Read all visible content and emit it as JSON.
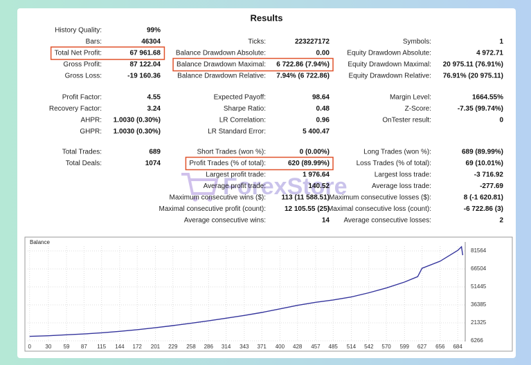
{
  "report": {
    "title": "Results",
    "watermark": "ForexStore",
    "sections": [
      {
        "rows": [
          [
            {
              "label": "History Quality:",
              "value": "99%"
            },
            null,
            null
          ],
          [
            {
              "label": "Bars:",
              "value": "46304"
            },
            {
              "label": "Ticks:",
              "value": "223227172"
            },
            {
              "label": "Symbols:",
              "value": "1"
            }
          ],
          [
            {
              "label": "Total Net Profit:",
              "value": "67 961.68",
              "highlight": true
            },
            {
              "label": "Balance Drawdown Absolute:",
              "value": "0.00"
            },
            {
              "label": "Equity Drawdown Absolute:",
              "value": "4 972.71"
            }
          ],
          [
            {
              "label": "Gross Profit:",
              "value": "87 122.04"
            },
            {
              "label": "Balance Drawdown Maximal:",
              "value": "6 722.86 (7.94%)",
              "highlight": true
            },
            {
              "label": "Equity Drawdown Maximal:",
              "value": "20 975.11 (76.91%)"
            }
          ],
          [
            {
              "label": "Gross Loss:",
              "value": "-19 160.36"
            },
            {
              "label": "Balance Drawdown Relative:",
              "value": "7.94% (6 722.86)"
            },
            {
              "label": "Equity Drawdown Relative:",
              "value": "76.91% (20 975.11)"
            }
          ]
        ]
      },
      {
        "rows": [
          [
            {
              "label": "Profit Factor:",
              "value": "4.55"
            },
            {
              "label": "Expected Payoff:",
              "value": "98.64"
            },
            {
              "label": "Margin Level:",
              "value": "1664.55%"
            }
          ],
          [
            {
              "label": "Recovery Factor:",
              "value": "3.24"
            },
            {
              "label": "Sharpe Ratio:",
              "value": "0.48"
            },
            {
              "label": "Z-Score:",
              "value": "-7.35 (99.74%)"
            }
          ],
          [
            {
              "label": "AHPR:",
              "value": "1.0030 (0.30%)"
            },
            {
              "label": "LR Correlation:",
              "value": "0.96"
            },
            {
              "label": "OnTester result:",
              "value": "0"
            }
          ],
          [
            {
              "label": "GHPR:",
              "value": "1.0030 (0.30%)"
            },
            {
              "label": "LR Standard Error:",
              "value": "5 400.47"
            },
            null
          ]
        ]
      },
      {
        "rows": [
          [
            {
              "label": "Total Trades:",
              "value": "689"
            },
            {
              "label": "Short Trades (won %):",
              "value": "0 (0.00%)"
            },
            {
              "label": "Long Trades (won %):",
              "value": "689 (89.99%)"
            }
          ],
          [
            {
              "label": "Total Deals:",
              "value": "1074"
            },
            {
              "label": "Profit Trades (% of total):",
              "value": "620 (89.99%)",
              "highlight": true
            },
            {
              "label": "Loss Trades (% of total):",
              "value": "69 (10.01%)"
            }
          ],
          [
            null,
            {
              "label": "Largest profit trade:",
              "value": "1 976.64"
            },
            {
              "label": "Largest loss trade:",
              "value": "-3 716.92"
            }
          ],
          [
            null,
            {
              "label": "Average profit trade:",
              "value": "140.52"
            },
            {
              "label": "Average loss trade:",
              "value": "-277.69"
            }
          ],
          [
            null,
            {
              "label": "Maximum consecutive wins ($):",
              "value": "113 (11 588.51)"
            },
            {
              "label": "Maximum consecutive losses ($):",
              "value": "8 (-1 620.81)"
            }
          ],
          [
            null,
            {
              "label": "Maximal consecutive profit (count):",
              "value": "12 105.55 (25)"
            },
            {
              "label": "Maximal consecutive loss (count):",
              "value": "-6 722.86 (3)"
            }
          ],
          [
            null,
            {
              "label": "Average consecutive wins:",
              "value": "14"
            },
            {
              "label": "Average consecutive losses:",
              "value": "2"
            }
          ]
        ]
      }
    ]
  },
  "chart_data": {
    "type": "line",
    "title": "Balance",
    "color": "#34349c",
    "x": [
      0,
      30,
      59,
      87,
      115,
      144,
      172,
      201,
      229,
      258,
      286,
      314,
      343,
      371,
      400,
      428,
      457,
      485,
      514,
      542,
      570,
      599,
      620,
      627,
      656,
      684,
      690,
      692
    ],
    "values": [
      10000,
      10500,
      11300,
      12000,
      13000,
      14200,
      15600,
      17200,
      19000,
      21000,
      23000,
      25200,
      27500,
      30000,
      33000,
      36000,
      38500,
      40500,
      43000,
      46500,
      50500,
      55500,
      60000,
      67000,
      73000,
      82000,
      85000,
      78000
    ],
    "xlim": [
      -3,
      696
    ],
    "ylim": [
      5700,
      85600
    ],
    "xticks": [
      0,
      30,
      59,
      87,
      115,
      144,
      172,
      201,
      229,
      258,
      286,
      314,
      343,
      371,
      400,
      428,
      457,
      485,
      514,
      542,
      570,
      599,
      627,
      656,
      684
    ],
    "yticks": [
      6266,
      21325,
      36385,
      51445,
      66504,
      81564
    ],
    "grid": true
  }
}
